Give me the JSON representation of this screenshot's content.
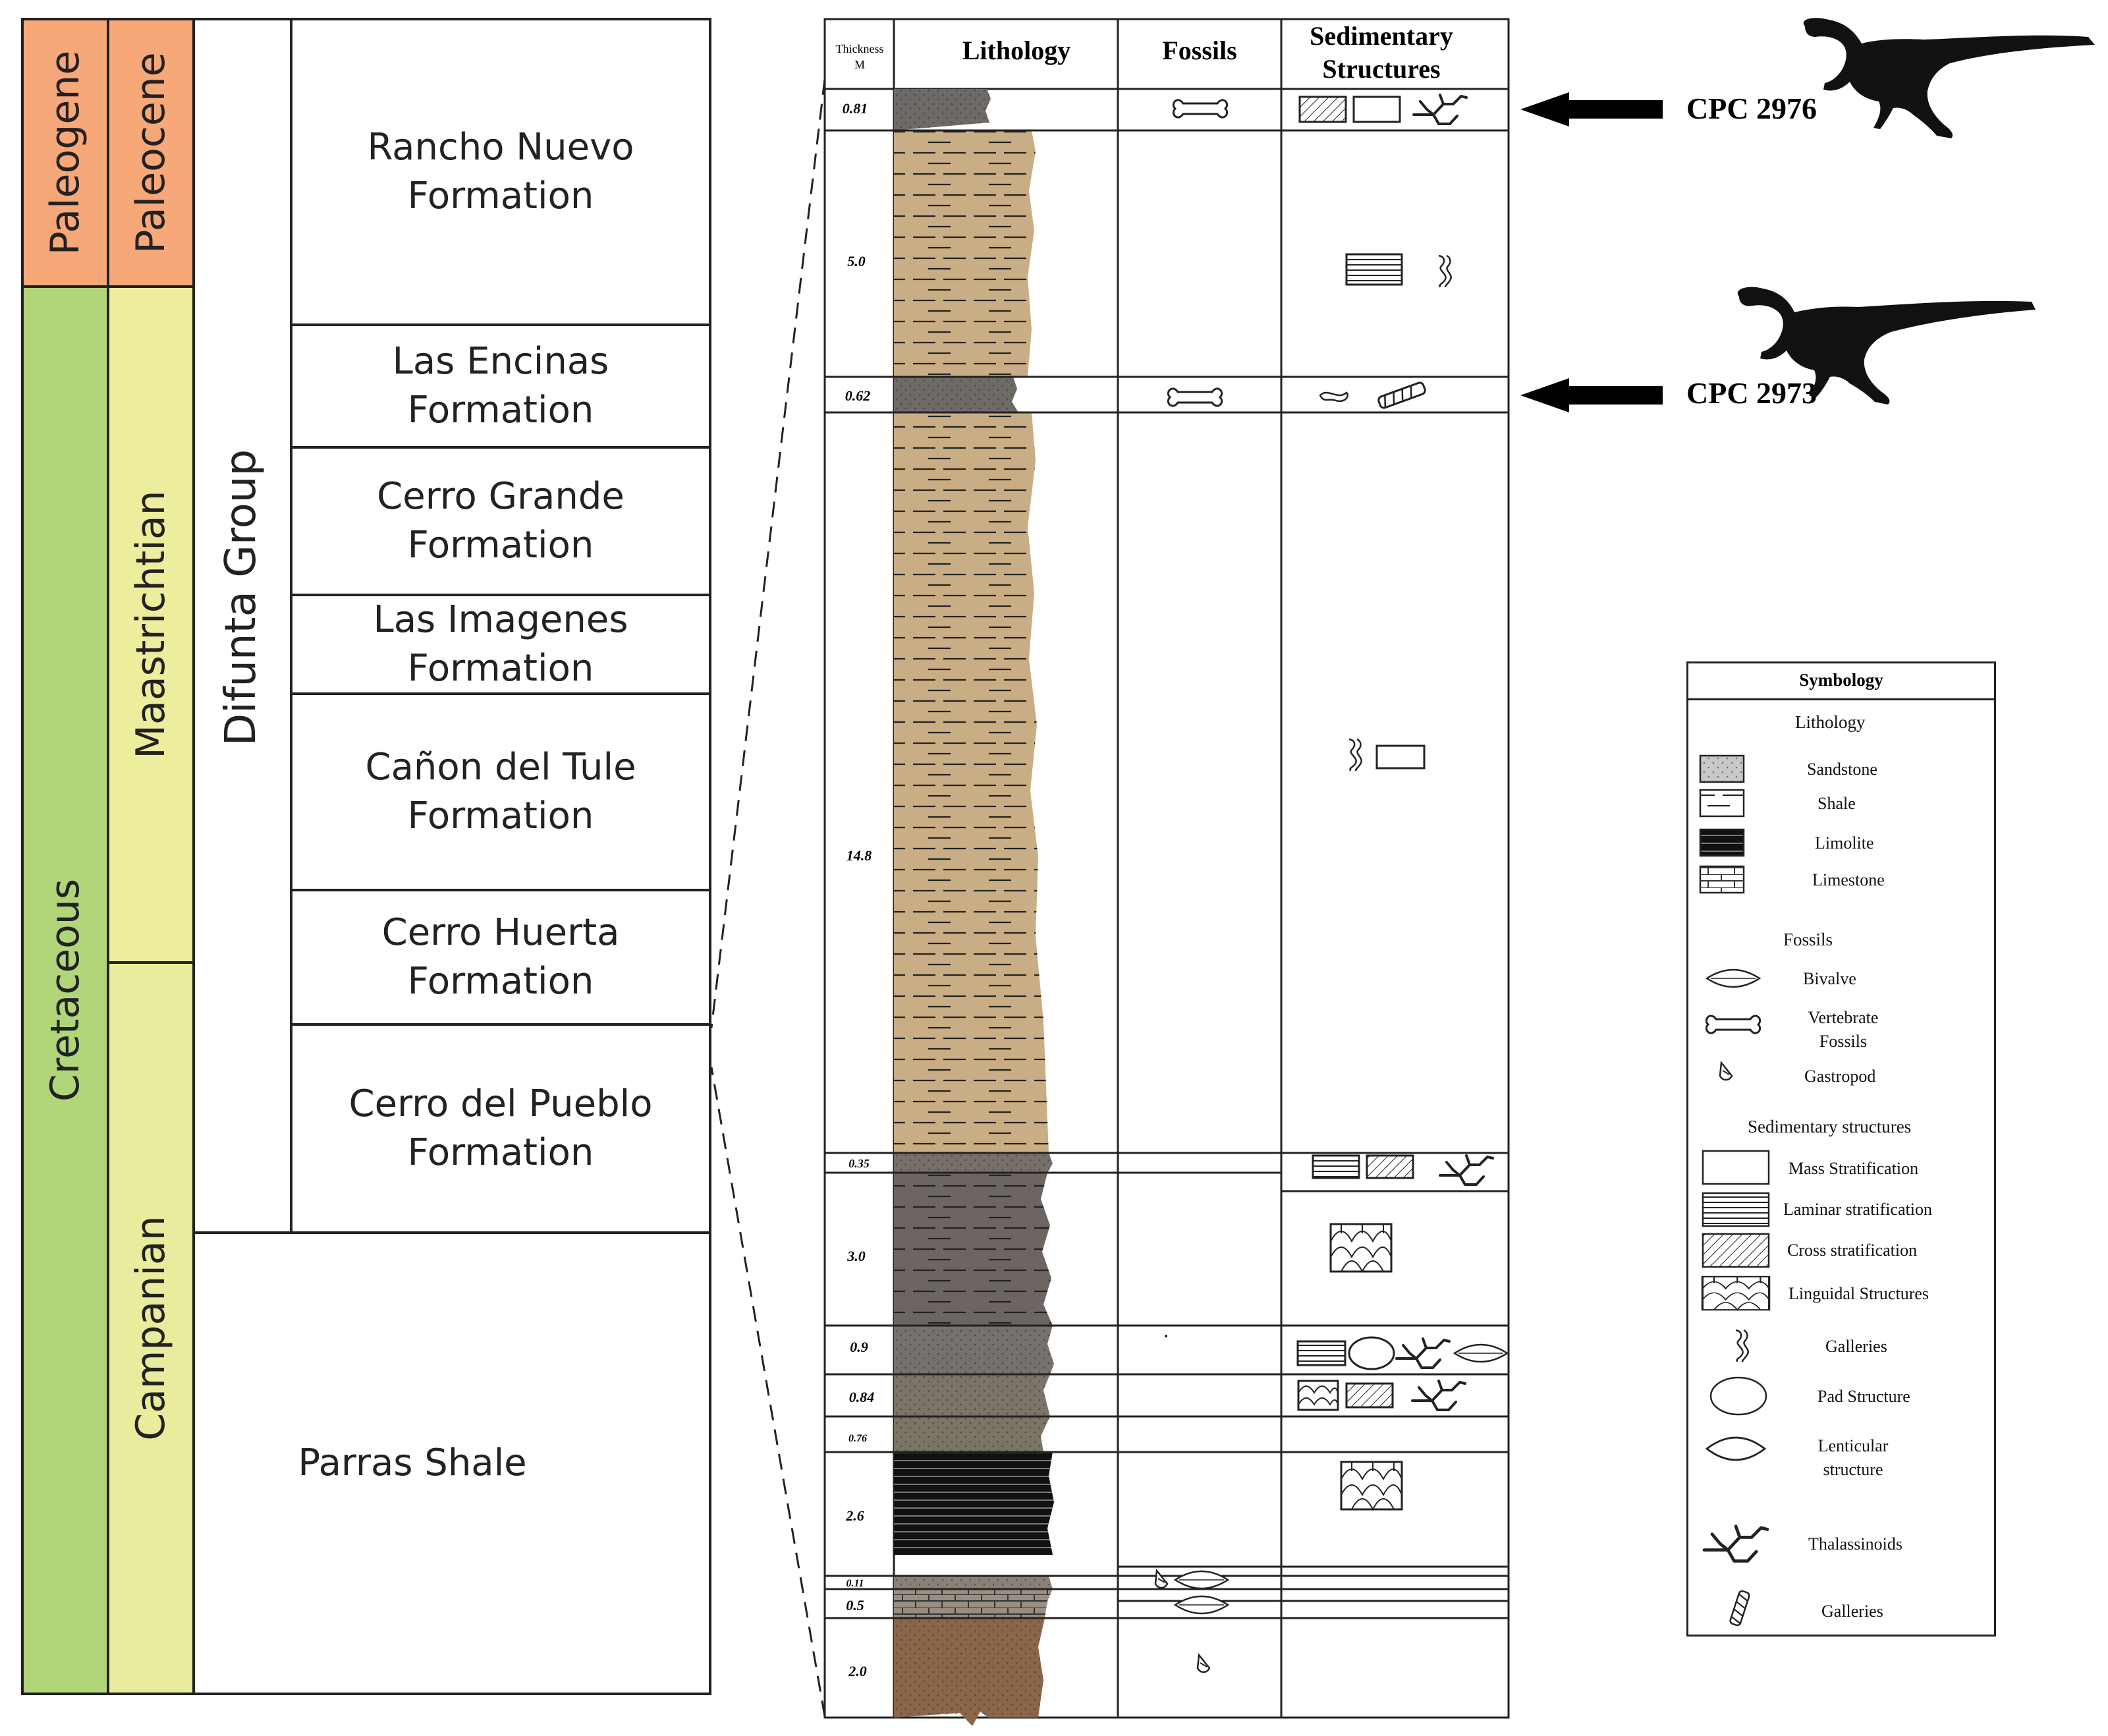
{
  "periods": [
    {
      "id": "paleogene",
      "label": "Paleogene",
      "color": "#f6a878"
    },
    {
      "id": "cretaceous",
      "label": "Cretaceous",
      "color": "#b1d67a"
    }
  ],
  "stages": [
    {
      "id": "paleocene",
      "label": "Paleocene",
      "color": "#f6a878"
    },
    {
      "id": "maastrichtian",
      "label": "Maastrichtian",
      "color": "#eded9e"
    },
    {
      "id": "campanian",
      "label": "Campanian",
      "color": "#e9ec9c"
    }
  ],
  "group": {
    "label": "Difunta Group"
  },
  "formations": [
    {
      "id": "rancho-nuevo",
      "label": "Rancho Nuevo Formation"
    },
    {
      "id": "las-encinas",
      "label": "Las Encinas Formation"
    },
    {
      "id": "cerro-grande",
      "label": "Cerro Grande Formation"
    },
    {
      "id": "las-imagenes",
      "label": "Las Imagenes Formation"
    },
    {
      "id": "canon-del-tule",
      "label": "Cañon del Tule Formation"
    },
    {
      "id": "cerro-huerta",
      "label": "Cerro Huerta Formation"
    },
    {
      "id": "cerro-del-pueblo",
      "label": "Cerro del Pueblo Formation"
    },
    {
      "id": "parras-shale",
      "label": "Parras Shale"
    }
  ],
  "column": {
    "headers": {
      "thickness": "Thickness M",
      "lithology": "Lithology",
      "fossils": "Fossils",
      "structures": "Sedimentary Structures"
    },
    "beds": [
      {
        "thickness": "0.81",
        "lithology": "sandstone",
        "color": "#6e6a66"
      },
      {
        "thickness": "5.0",
        "lithology": "shale",
        "color": "#c9ad84"
      },
      {
        "thickness": "0.62",
        "lithology": "sandstone",
        "color": "#6e6a66"
      },
      {
        "thickness": "14.8",
        "lithology": "shale",
        "color": "#c9ad84"
      },
      {
        "thickness": "0.35",
        "lithology": "sandstone",
        "color": "#77706a"
      },
      {
        "thickness": "3.0",
        "lithology": "shale",
        "color": "#6c6562"
      },
      {
        "thickness": "0.9",
        "lithology": "sandstone",
        "color": "#76716c"
      },
      {
        "thickness": "0.84",
        "lithology": "sandstone",
        "color": "#7c7468"
      },
      {
        "thickness": "0.76",
        "lithology": "sandstone",
        "color": "#7b7563"
      },
      {
        "thickness": "2.6",
        "lithology": "limolite",
        "color": "#111111"
      },
      {
        "thickness": "0.11",
        "lithology": "sandstone",
        "color": "#8a8076"
      },
      {
        "thickness": "0.5",
        "lithology": "limestone",
        "color": "#9a8d82"
      },
      {
        "thickness": "2.0",
        "lithology": "sandstone",
        "color": "#8b6549"
      }
    ]
  },
  "specimens": [
    {
      "id": "cpc-2976",
      "label": "CPC 2976"
    },
    {
      "id": "cpc-2973",
      "label": "CPC 2973"
    }
  ],
  "legend": {
    "title": "Symbology",
    "sections": [
      {
        "heading": "Lithology",
        "items": [
          {
            "icon": "sandstone-pattern-icon",
            "label": "Sandstone"
          },
          {
            "icon": "shale-pattern-icon",
            "label": "Shale"
          },
          {
            "icon": "limolite-pattern-icon",
            "label": "Limolite"
          },
          {
            "icon": "limestone-pattern-icon",
            "label": "Limestone"
          }
        ]
      },
      {
        "heading": "Fossils",
        "items": [
          {
            "icon": "bivalve-icon",
            "label": "Bivalve"
          },
          {
            "icon": "bone-icon",
            "label": "Vertebrate Fossils"
          },
          {
            "icon": "gastropod-icon",
            "label": "Gastropod"
          }
        ]
      },
      {
        "heading": "Sedimentary structures",
        "items": [
          {
            "icon": "mass-stratification-icon",
            "label": "Mass Stratification"
          },
          {
            "icon": "laminar-stratification-icon",
            "label": "Laminar stratification"
          },
          {
            "icon": "cross-stratification-icon",
            "label": "Cross stratification"
          },
          {
            "icon": "linguidal-structures-icon",
            "label": "Linguidal Structures"
          },
          {
            "icon": "galleries-icon",
            "label": "Galleries"
          },
          {
            "icon": "pad-structure-icon",
            "label": "Pad Structure"
          },
          {
            "icon": "lenticular-structure-icon",
            "label": "Lenticular structure"
          },
          {
            "icon": "thalassinoids-icon",
            "label": "Thalassinoids"
          },
          {
            "icon": "galleries-tube-icon",
            "label": "Galleries"
          }
        ]
      }
    ]
  }
}
